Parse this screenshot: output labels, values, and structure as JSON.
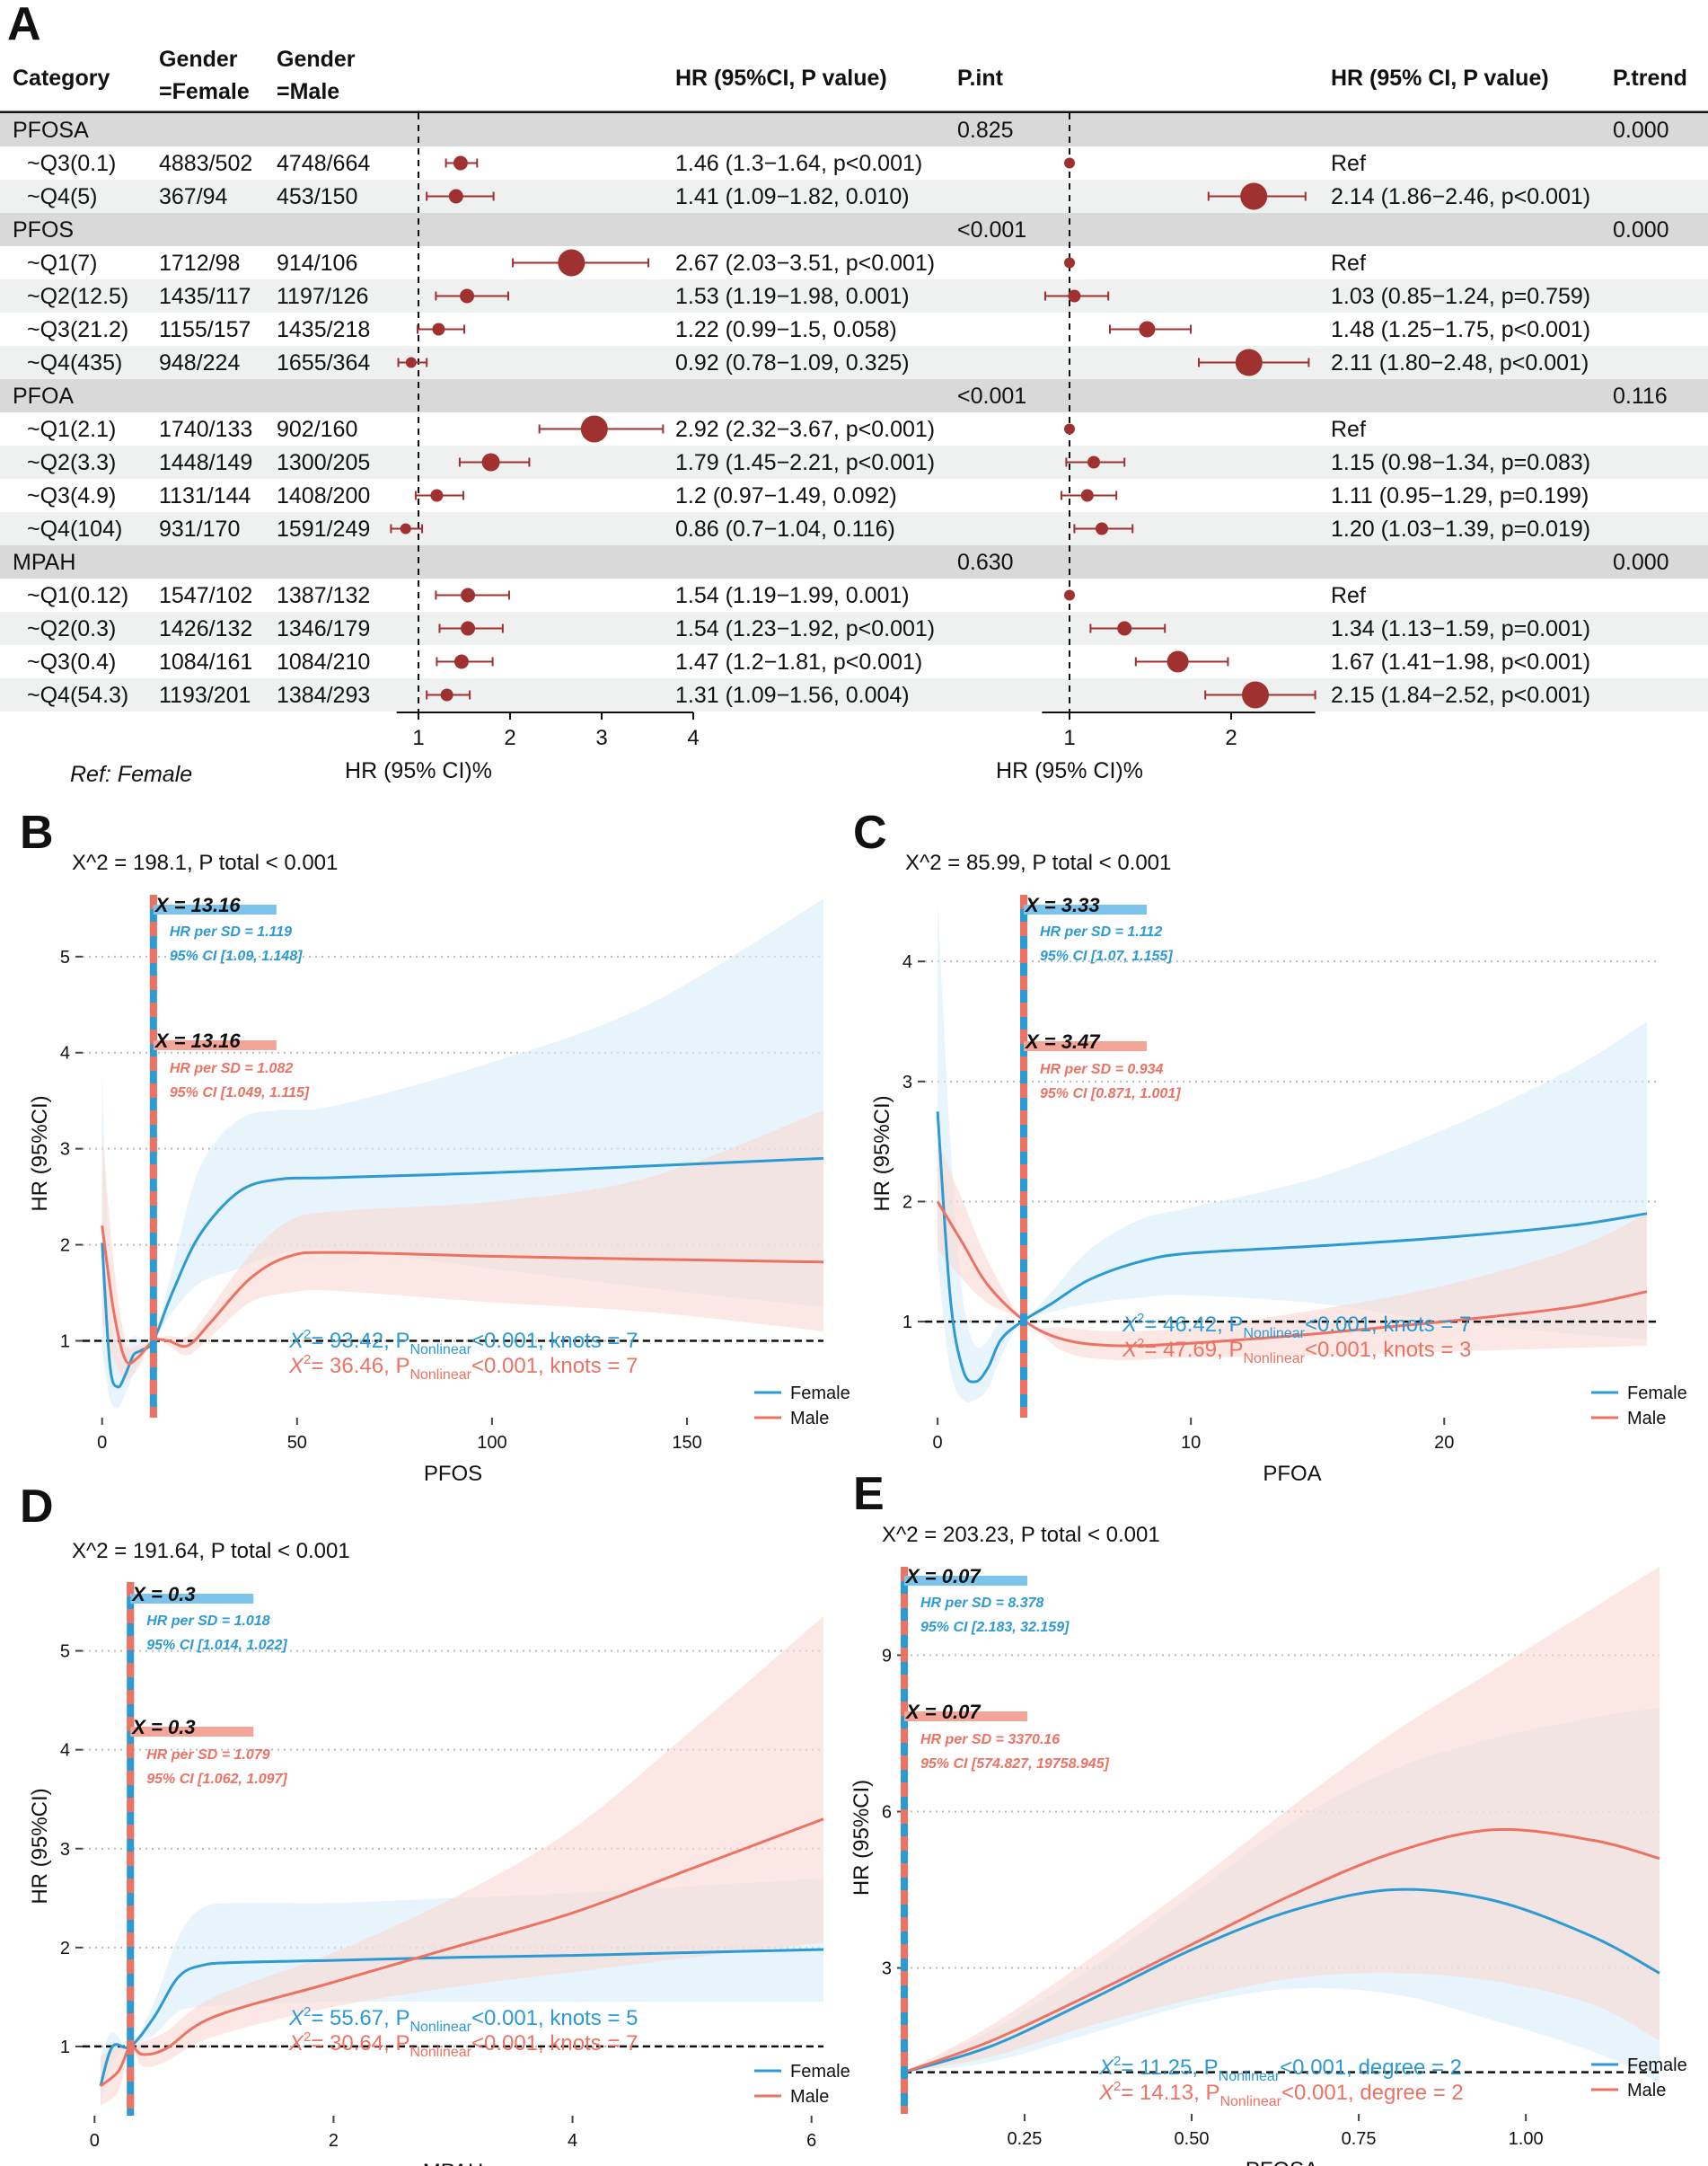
{
  "chart_data": [
    {
      "panel": "A",
      "type": "table",
      "subtype": "forest-plot",
      "columns": [
        "Category",
        "Gender\n=Female",
        "Gender\n=Male",
        "HR (95%CI, P value)",
        "P.int",
        "HR (95% CI, P value)",
        "P.trend"
      ],
      "ref_note": "Ref: Female",
      "axis1": {
        "label": "HR (95% CI)%",
        "ticks": [
          1,
          2,
          3,
          4
        ],
        "range": [
          0.62,
          4.0
        ]
      },
      "axis2": {
        "label": "HR (95% CI)%",
        "ticks": [
          1,
          2
        ],
        "range": [
          0.6,
          2.55
        ]
      },
      "groups": [
        {
          "name": "PFOSA",
          "p_int": "0.825",
          "p_trend": "0.000",
          "rows": [
            {
              "label": "~Q3(0.1)",
              "female": "4883/502",
              "male": "4748/664",
              "hr1": 1.46,
              "lo1": 1.3,
              "hi1": 1.64,
              "text1": "1.46 (1.3−1.64, p<0.001)",
              "hr2": 1.0,
              "lo2": 1.0,
              "hi2": 1.0,
              "text2": "Ref"
            },
            {
              "label": "~Q4(5)",
              "female": "367/94",
              "male": "453/150",
              "hr1": 1.41,
              "lo1": 1.09,
              "hi1": 1.82,
              "text1": "1.41 (1.09−1.82, 0.010)",
              "hr2": 2.14,
              "lo2": 1.86,
              "hi2": 2.46,
              "text2": "2.14 (1.86−2.46, p<0.001)"
            }
          ]
        },
        {
          "name": "PFOS",
          "p_int": "<0.001",
          "p_trend": "0.000",
          "rows": [
            {
              "label": "~Q1(7)",
              "female": "1712/98",
              "male": "914/106",
              "hr1": 2.67,
              "lo1": 2.03,
              "hi1": 3.51,
              "text1": "2.67 (2.03−3.51, p<0.001)",
              "hr2": 1.0,
              "lo2": 1.0,
              "hi2": 1.0,
              "text2": "Ref"
            },
            {
              "label": "~Q2(12.5)",
              "female": "1435/117",
              "male": "1197/126",
              "hr1": 1.53,
              "lo1": 1.19,
              "hi1": 1.98,
              "text1": "1.53 (1.19−1.98, 0.001)",
              "hr2": 1.03,
              "lo2": 0.85,
              "hi2": 1.24,
              "text2": "1.03 (0.85−1.24, p=0.759)"
            },
            {
              "label": "~Q3(21.2)",
              "female": "1155/157",
              "male": "1435/218",
              "hr1": 1.22,
              "lo1": 0.99,
              "hi1": 1.5,
              "text1": "1.22 (0.99−1.5, 0.058)",
              "hr2": 1.48,
              "lo2": 1.25,
              "hi2": 1.75,
              "text2": "1.48 (1.25−1.75, p<0.001)"
            },
            {
              "label": "~Q4(435)",
              "female": "948/224",
              "male": "1655/364",
              "hr1": 0.92,
              "lo1": 0.78,
              "hi1": 1.09,
              "text1": "0.92 (0.78−1.09, 0.325)",
              "hr2": 2.11,
              "lo2": 1.8,
              "hi2": 2.48,
              "text2": "2.11 (1.80−2.48, p<0.001)"
            }
          ]
        },
        {
          "name": "PFOA",
          "p_int": "<0.001",
          "p_trend": "0.116",
          "rows": [
            {
              "label": "~Q1(2.1)",
              "female": "1740/133",
              "male": "902/160",
              "hr1": 2.92,
              "lo1": 2.32,
              "hi1": 3.67,
              "text1": "2.92 (2.32−3.67, p<0.001)",
              "hr2": 1.0,
              "lo2": 1.0,
              "hi2": 1.0,
              "text2": "Ref"
            },
            {
              "label": "~Q2(3.3)",
              "female": "1448/149",
              "male": "1300/205",
              "hr1": 1.79,
              "lo1": 1.45,
              "hi1": 2.21,
              "text1": "1.79 (1.45−2.21, p<0.001)",
              "hr2": 1.15,
              "lo2": 0.98,
              "hi2": 1.34,
              "text2": "1.15 (0.98−1.34, p=0.083)"
            },
            {
              "label": "~Q3(4.9)",
              "female": "1131/144",
              "male": "1408/200",
              "hr1": 1.2,
              "lo1": 0.97,
              "hi1": 1.49,
              "text1": "1.2 (0.97−1.49, 0.092)",
              "hr2": 1.11,
              "lo2": 0.95,
              "hi2": 1.29,
              "text2": "1.11 (0.95−1.29, p=0.199)"
            },
            {
              "label": "~Q4(104)",
              "female": "931/170",
              "male": "1591/249",
              "hr1": 0.86,
              "lo1": 0.7,
              "hi1": 1.04,
              "text1": "0.86 (0.7−1.04, 0.116)",
              "hr2": 1.2,
              "lo2": 1.03,
              "hi2": 1.39,
              "text2": "1.20 (1.03−1.39, p=0.019)"
            }
          ]
        },
        {
          "name": "MPAH",
          "p_int": "0.630",
          "p_trend": "0.000",
          "rows": [
            {
              "label": "~Q1(0.12)",
              "female": "1547/102",
              "male": "1387/132",
              "hr1": 1.54,
              "lo1": 1.19,
              "hi1": 1.99,
              "text1": "1.54 (1.19−1.99, 0.001)",
              "hr2": 1.0,
              "lo2": 1.0,
              "hi2": 1.0,
              "text2": "Ref"
            },
            {
              "label": "~Q2(0.3)",
              "female": "1426/132",
              "male": "1346/179",
              "hr1": 1.54,
              "lo1": 1.23,
              "hi1": 1.92,
              "text1": "1.54 (1.23−1.92, p<0.001)",
              "hr2": 1.34,
              "lo2": 1.13,
              "hi2": 1.59,
              "text2": "1.34 (1.13−1.59, p=0.001)"
            },
            {
              "label": "~Q3(0.4)",
              "female": "1084/161",
              "male": "1084/210",
              "hr1": 1.47,
              "lo1": 1.2,
              "hi1": 1.81,
              "text1": "1.47 (1.2−1.81, p<0.001)",
              "hr2": 1.67,
              "lo2": 1.41,
              "hi2": 1.98,
              "text2": "1.67 (1.41−1.98, p<0.001)"
            },
            {
              "label": "~Q4(54.3)",
              "female": "1193/201",
              "male": "1384/293",
              "hr1": 1.31,
              "lo1": 1.09,
              "hi1": 1.56,
              "text1": "1.31 (1.09−1.56, 0.004)",
              "hr2": 2.15,
              "lo2": 1.84,
              "hi2": 2.52,
              "text2": "2.15 (1.84−2.52, p<0.001)"
            }
          ]
        }
      ]
    },
    {
      "panel": "B",
      "type": "line",
      "title": "X^2 = 198.1, P total < 0.001",
      "xlabel": "PFOS",
      "ylabel": "HR (95%CI)",
      "xlim": [
        -5,
        185
      ],
      "ylim": [
        0.2,
        5.7
      ],
      "xticks": [
        0,
        50,
        100,
        150
      ],
      "yticks": [
        1,
        2,
        3,
        4,
        5
      ],
      "cutoff_line": 13.16,
      "ann_female": {
        "x": "X = 13.16",
        "hr": "HR per SD = 1.119",
        "ci": "95% CI [1.09, 1.148]"
      },
      "ann_male": {
        "x": "X = 13.16",
        "hr": "HR per SD = 1.082",
        "ci": "95% CI [1.049, 1.115]"
      },
      "stats_female": {
        "pre": "X",
        "mid": "= 93.42, P",
        "post": "<0.001, knots = 7"
      },
      "stats_male": {
        "pre": "X",
        "mid": "= 36.46, P",
        "post": "<0.001, knots = 7"
      },
      "series": [
        {
          "name": "Female",
          "x": [
            0,
            2,
            4,
            6,
            8,
            10,
            13.16,
            18,
            25,
            35,
            45,
            60,
            100,
            140,
            185
          ],
          "y": [
            2.02,
            0.75,
            0.52,
            0.65,
            0.85,
            0.9,
            1.0,
            1.5,
            2.1,
            2.55,
            2.68,
            2.7,
            2.75,
            2.82,
            2.9
          ],
          "lo": [
            0.9,
            0.4,
            0.3,
            0.45,
            0.65,
            0.8,
            1.0,
            1.3,
            1.6,
            1.75,
            1.9,
            1.95,
            1.75,
            1.55,
            1.35
          ],
          "hi": [
            3.8,
            1.5,
            0.9,
            0.9,
            1.05,
            1.0,
            1.0,
            1.75,
            2.8,
            3.3,
            3.4,
            3.45,
            3.9,
            4.5,
            5.6
          ]
        },
        {
          "name": "Male",
          "x": [
            0,
            3,
            6,
            9,
            13.16,
            17,
            22,
            28,
            38,
            48,
            60,
            100,
            140,
            185
          ],
          "y": [
            2.2,
            1.3,
            0.8,
            0.82,
            1.0,
            1.0,
            0.95,
            1.2,
            1.65,
            1.88,
            1.92,
            1.88,
            1.85,
            1.82
          ],
          "lo": [
            1.2,
            0.8,
            0.6,
            0.7,
            1.0,
            0.95,
            0.85,
            1.05,
            1.4,
            1.5,
            1.52,
            1.4,
            1.3,
            1.1
          ],
          "hi": [
            3.2,
            1.8,
            1.0,
            0.95,
            1.0,
            1.05,
            1.05,
            1.35,
            1.9,
            2.25,
            2.35,
            2.45,
            2.7,
            3.4
          ]
        }
      ]
    },
    {
      "panel": "C",
      "type": "line",
      "title": "X^2 = 85.99, P total < 0.001",
      "xlabel": "PFOA",
      "ylabel": "HR (95%CI)",
      "xlim": [
        -0.5,
        28.5
      ],
      "ylim": [
        0.2,
        4.6
      ],
      "xticks": [
        0,
        10,
        20
      ],
      "yticks": [
        1,
        2,
        3,
        4
      ],
      "cutoff_line": 3.4,
      "ann_female": {
        "x": "X = 3.33",
        "hr": "HR per SD = 1.112",
        "ci": "95% CI [1.07, 1.155]"
      },
      "ann_male": {
        "x": "X = 3.47",
        "hr": "HR per SD = 0.934",
        "ci": "95% CI [0.871, 1.001]"
      },
      "stats_female": {
        "pre": "X",
        "mid": "= 46.42, P",
        "post": "<0.001, knots = 7"
      },
      "stats_male": {
        "pre": "X",
        "mid": "= 47.69, P",
        "post": "<0.001, knots = 3"
      },
      "series": [
        {
          "name": "Female",
          "x": [
            0,
            0.5,
            1,
            1.5,
            2,
            2.5,
            3.33,
            4.5,
            6,
            8,
            10,
            15,
            20,
            25,
            28
          ],
          "y": [
            2.75,
            1.2,
            0.6,
            0.5,
            0.62,
            0.85,
            1.0,
            1.15,
            1.35,
            1.5,
            1.57,
            1.63,
            1.7,
            1.8,
            1.9
          ],
          "lo": [
            1.5,
            0.6,
            0.35,
            0.35,
            0.45,
            0.7,
            1.0,
            1.08,
            1.15,
            1.2,
            1.22,
            1.15,
            1.0,
            0.9,
            0.85
          ],
          "hi": [
            4.5,
            2.5,
            1.2,
            0.8,
            0.85,
            1.0,
            1.0,
            1.25,
            1.6,
            1.85,
            1.95,
            2.2,
            2.6,
            3.1,
            3.5
          ]
        },
        {
          "name": "Male",
          "x": [
            0,
            1,
            2,
            3.47,
            5,
            7,
            10,
            15,
            20,
            25,
            28
          ],
          "y": [
            2.0,
            1.65,
            1.3,
            1.0,
            0.85,
            0.8,
            0.82,
            0.9,
            1.0,
            1.12,
            1.25
          ],
          "lo": [
            1.6,
            1.35,
            1.15,
            1.0,
            0.75,
            0.68,
            0.7,
            0.72,
            0.75,
            0.78,
            0.8
          ],
          "hi": [
            2.5,
            2.0,
            1.5,
            1.0,
            0.95,
            0.92,
            0.95,
            1.1,
            1.3,
            1.6,
            1.9
          ]
        }
      ]
    },
    {
      "panel": "D",
      "type": "line",
      "title": "X^2 = 191.64, P total < 0.001",
      "xlabel": "MPAH",
      "ylabel": "HR (95%CI)",
      "xlim": [
        -0.1,
        6.1
      ],
      "ylim": [
        0.3,
        5.75
      ],
      "xticks": [
        0,
        2,
        4,
        6
      ],
      "yticks": [
        1,
        2,
        3,
        4,
        5
      ],
      "cutoff_line": 0.3,
      "ann_female": {
        "x": "X = 0.3",
        "hr": "HR per SD = 1.018",
        "ci": "95% CI [1.014, 1.022]"
      },
      "ann_male": {
        "x": "X = 0.3",
        "hr": "HR per SD = 1.079",
        "ci": "95% CI [1.062, 1.097]"
      },
      "stats_female": {
        "pre": "X",
        "mid": "= 55.67, P",
        "post": "<0.001, knots = 5"
      },
      "stats_male": {
        "pre": "X",
        "mid": "= 30.64, P",
        "post": "<0.001, knots = 7"
      },
      "series": [
        {
          "name": "Female",
          "x": [
            0.05,
            0.15,
            0.3,
            0.5,
            0.7,
            0.9,
            1.2,
            2,
            3,
            4,
            5,
            6.1
          ],
          "y": [
            0.6,
            1.0,
            1.0,
            1.3,
            1.7,
            1.82,
            1.85,
            1.87,
            1.9,
            1.92,
            1.95,
            1.98
          ],
          "lo": [
            0.4,
            0.85,
            1.0,
            1.12,
            1.35,
            1.4,
            1.42,
            1.45,
            1.45,
            1.45,
            1.45,
            1.45
          ],
          "hi": [
            0.9,
            1.15,
            1.0,
            1.45,
            2.1,
            2.4,
            2.45,
            2.45,
            2.5,
            2.55,
            2.62,
            2.7
          ]
        },
        {
          "name": "Male",
          "x": [
            0.05,
            0.2,
            0.3,
            0.4,
            0.6,
            1,
            2,
            3,
            4,
            5,
            6.1
          ],
          "y": [
            0.6,
            0.75,
            1.0,
            0.92,
            0.98,
            1.3,
            1.65,
            2.0,
            2.35,
            2.8,
            3.3
          ],
          "lo": [
            0.4,
            0.55,
            1.0,
            0.8,
            0.85,
            1.1,
            1.4,
            1.6,
            1.75,
            1.9,
            2.05
          ],
          "hi": [
            0.9,
            1.0,
            1.0,
            1.05,
            1.15,
            1.5,
            1.95,
            2.5,
            3.2,
            4.2,
            5.35
          ]
        }
      ]
    },
    {
      "panel": "E",
      "type": "line",
      "title": "X^2 = 203.23, P total < 0.001",
      "xlabel": "PFOSA",
      "ylabel": "HR (95%CI)",
      "xlim": [
        0.07,
        1.2
      ],
      "ylim": [
        0.2,
        10.8
      ],
      "xticks": [
        0.25,
        0.5,
        0.75,
        1.0
      ],
      "xtick_labels": [
        "0.25",
        "0.50",
        "0.75",
        "1.00"
      ],
      "yticks": [
        3,
        6,
        9
      ],
      "cutoff_line": 0.07,
      "ann_female": {
        "x": "X = 0.07",
        "hr": "HR per SD = 8.378",
        "ci": "95% CI [2.183, 32.159]"
      },
      "ann_male": {
        "x": "X = 0.07",
        "hr": "HR per SD = 3370.16",
        "ci": "95% CI [574.827, 19758.945]"
      },
      "stats_female": {
        "pre": "X",
        "mid": "= 11.25, P",
        "post": "<0.001, degree = 2"
      },
      "stats_male": {
        "pre": "X",
        "mid": "= 14.13, P",
        "post": "<0.001, degree = 2"
      },
      "series": [
        {
          "name": "Female",
          "x": [
            0.07,
            0.2,
            0.35,
            0.5,
            0.65,
            0.8,
            0.95,
            1.1,
            1.2
          ],
          "y": [
            1.0,
            1.5,
            2.4,
            3.35,
            4.1,
            4.5,
            4.3,
            3.6,
            2.9
          ],
          "lo": [
            1.0,
            1.2,
            1.75,
            2.3,
            2.6,
            2.5,
            2.0,
            1.4,
            0.8
          ],
          "hi": [
            1.0,
            1.8,
            3.0,
            4.4,
            5.8,
            6.8,
            7.4,
            7.8,
            8.0
          ]
        },
        {
          "name": "Male",
          "x": [
            0.07,
            0.2,
            0.35,
            0.5,
            0.65,
            0.8,
            0.95,
            1.1,
            1.2
          ],
          "y": [
            1.0,
            1.6,
            2.5,
            3.45,
            4.4,
            5.2,
            5.65,
            5.45,
            5.1
          ],
          "lo": [
            1.0,
            1.3,
            1.9,
            2.4,
            2.8,
            2.9,
            2.75,
            2.3,
            1.6
          ],
          "hi": [
            1.0,
            1.9,
            3.2,
            4.6,
            6.1,
            7.5,
            8.7,
            9.9,
            10.7
          ]
        }
      ]
    }
  ],
  "legend_labels": [
    "Female",
    "Male"
  ],
  "nonlinear_subscript": "Nonlinear",
  "colors": {
    "female": "#2c9ad3",
    "male": "#ec7263",
    "female_band": "#d8ecf8",
    "male_band": "#f9d9d4",
    "dot": "#9f3131",
    "header_gray": "#d9d9d9",
    "alt_row": "#eef1f0"
  }
}
